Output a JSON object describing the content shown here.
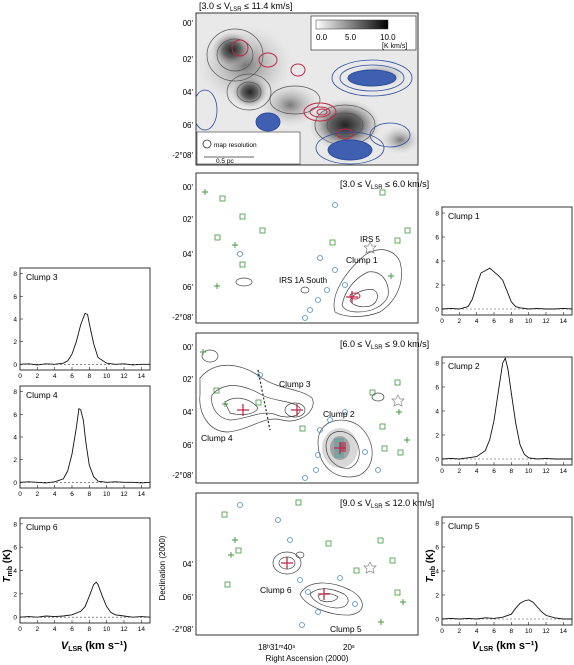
{
  "map_top": {
    "range_label": "[3.0 ≤ V",
    "range_sub": "LSR",
    "range_tail": " ≤ 11.4 km/s]",
    "colorbar_ticks": [
      "0.0",
      "5.0",
      "10.0"
    ],
    "colorbar_unit": "[K km/s]",
    "dec_ticks": [
      "00'",
      "02'",
      "04'",
      "06'",
      "-2°08'"
    ],
    "map_resolution_label": "map resolution",
    "scale_label": "0.5 pc"
  },
  "map_a": {
    "range_label": "[3.0 ≤ V",
    "range_sub": "LSR",
    "range_tail": " ≤ 6.0 km/s]",
    "dec_ticks": [
      "00'",
      "02'",
      "04'",
      "06'",
      "-2°08'"
    ],
    "labels": [
      "IRS 5",
      "Clump 1",
      "IRS 1A South"
    ]
  },
  "map_b": {
    "range_label": "[6.0 ≤ V",
    "range_sub": "LSR",
    "range_tail": " ≤ 9.0 km/s]",
    "dec_ticks": [
      "00'",
      "02'",
      "04'",
      "06'",
      "-2°08'"
    ],
    "labels": [
      "Clump 3",
      "Clump 2",
      "Clump 4"
    ]
  },
  "map_c": {
    "range_label": "[9.0 ≤ V",
    "range_sub": "LSR",
    "range_tail": " ≤ 12.0 km/s]",
    "dec_ticks": [
      "04'",
      "06'",
      "-2°08'"
    ],
    "labels": [
      "Clump 6",
      "Clump 5"
    ],
    "ra_ticks": [
      "18ʰ31ᵐ40ˢ",
      "20ˢ"
    ],
    "xlabel": "Right Ascension (2000)",
    "ylabel": "Declination (2000)"
  },
  "spectra_common": {
    "x_ticks": [
      "0",
      "2",
      "4",
      "6",
      "8",
      "10",
      "12",
      "14"
    ],
    "y_ticks": [
      "0",
      "2",
      "4",
      "6",
      "8"
    ],
    "xlabel_main": "V",
    "xlabel_sub": "LSR",
    "xlabel_tail": " (km s⁻¹)",
    "ylabel_main": "T",
    "ylabel_sub": "mb",
    "ylabel_tail": " (K)"
  },
  "chart_data": [
    {
      "type": "line",
      "title": "Clump 3",
      "xlim": [
        0,
        15
      ],
      "ylim": [
        -0.5,
        8.5
      ],
      "x": [
        0,
        1,
        2,
        3,
        4,
        5,
        5.5,
        6,
        6.5,
        7,
        7.5,
        7.8,
        8,
        8.5,
        9,
        10,
        11,
        12,
        13,
        14,
        15
      ],
      "values": [
        0,
        0.05,
        -0.05,
        0.05,
        0,
        0.1,
        0.3,
        0.9,
        2,
        3.5,
        4.5,
        4.4,
        3.6,
        1.8,
        0.6,
        0.1,
        0,
        0.05,
        -0.05,
        0,
        0
      ]
    },
    {
      "type": "line",
      "title": "Clump 4",
      "xlim": [
        0,
        15
      ],
      "ylim": [
        -0.5,
        8.5
      ],
      "x": [
        0,
        1,
        2,
        3,
        4,
        5,
        5.5,
        6,
        6.5,
        6.8,
        7,
        7.3,
        7.6,
        8,
        8.5,
        9,
        10,
        11,
        12,
        13,
        14,
        15
      ],
      "values": [
        0,
        0.05,
        0,
        -0.05,
        0.05,
        0.3,
        1,
        2.5,
        4.8,
        6.5,
        6.4,
        5.5,
        3.5,
        1.5,
        0.5,
        0.1,
        0,
        0.05,
        0,
        0,
        -0.05,
        0
      ]
    },
    {
      "type": "line",
      "title": "Clump 6",
      "xlim": [
        0,
        15
      ],
      "ylim": [
        -0.5,
        8.5
      ],
      "x": [
        0,
        1,
        2,
        3,
        4,
        5,
        6,
        7,
        7.5,
        8,
        8.5,
        8.8,
        9,
        9.5,
        10,
        10.5,
        11,
        12,
        13,
        14,
        15
      ],
      "values": [
        0,
        0.05,
        0,
        0.1,
        0.05,
        0.1,
        0.2,
        0.5,
        0.9,
        1.8,
        2.8,
        3.0,
        2.8,
        1.8,
        0.9,
        0.4,
        0.2,
        0.1,
        0,
        0.05,
        0
      ]
    },
    {
      "type": "line",
      "title": "Clump 1",
      "xlim": [
        0,
        15
      ],
      "ylim": [
        -0.5,
        8.5
      ],
      "x": [
        0,
        1,
        2,
        3,
        3.5,
        4,
        4.5,
        5,
        5.5,
        6,
        6.5,
        7,
        7.5,
        8,
        8.5,
        9,
        10,
        11,
        12,
        13,
        14,
        15
      ],
      "values": [
        0,
        0.05,
        0,
        0.2,
        0.8,
        2.0,
        3.0,
        3.2,
        3.4,
        3.1,
        2.8,
        2.4,
        1.5,
        0.6,
        0.2,
        0.1,
        0,
        0.05,
        0,
        0,
        0.05,
        0
      ]
    },
    {
      "type": "line",
      "title": "Clump 2",
      "xlim": [
        0,
        15
      ],
      "ylim": [
        -0.5,
        8.5
      ],
      "x": [
        0,
        1,
        2,
        3,
        4,
        5,
        5.5,
        6,
        6.5,
        7,
        7.3,
        7.6,
        8,
        8.5,
        9,
        9.5,
        10,
        11,
        12,
        13,
        14,
        15
      ],
      "values": [
        0,
        0.05,
        0,
        0.1,
        0.2,
        0.7,
        1.6,
        3.2,
        5.6,
        8.0,
        8.4,
        7.5,
        5.5,
        3.0,
        1.2,
        0.4,
        0.1,
        0,
        0.05,
        0,
        0,
        0
      ]
    },
    {
      "type": "line",
      "title": "Clump 5",
      "xlim": [
        0,
        15
      ],
      "ylim": [
        -0.5,
        8.5
      ],
      "x": [
        0,
        1,
        2,
        3,
        4,
        5,
        6,
        7,
        8,
        8.5,
        9,
        9.5,
        10,
        10.5,
        11,
        11.5,
        12,
        13,
        14,
        15
      ],
      "values": [
        0,
        0.05,
        0,
        0.05,
        0,
        0.1,
        0.05,
        0.15,
        0.4,
        0.9,
        1.3,
        1.5,
        1.6,
        1.4,
        1.0,
        0.6,
        0.3,
        0.1,
        0,
        0
      ]
    }
  ]
}
